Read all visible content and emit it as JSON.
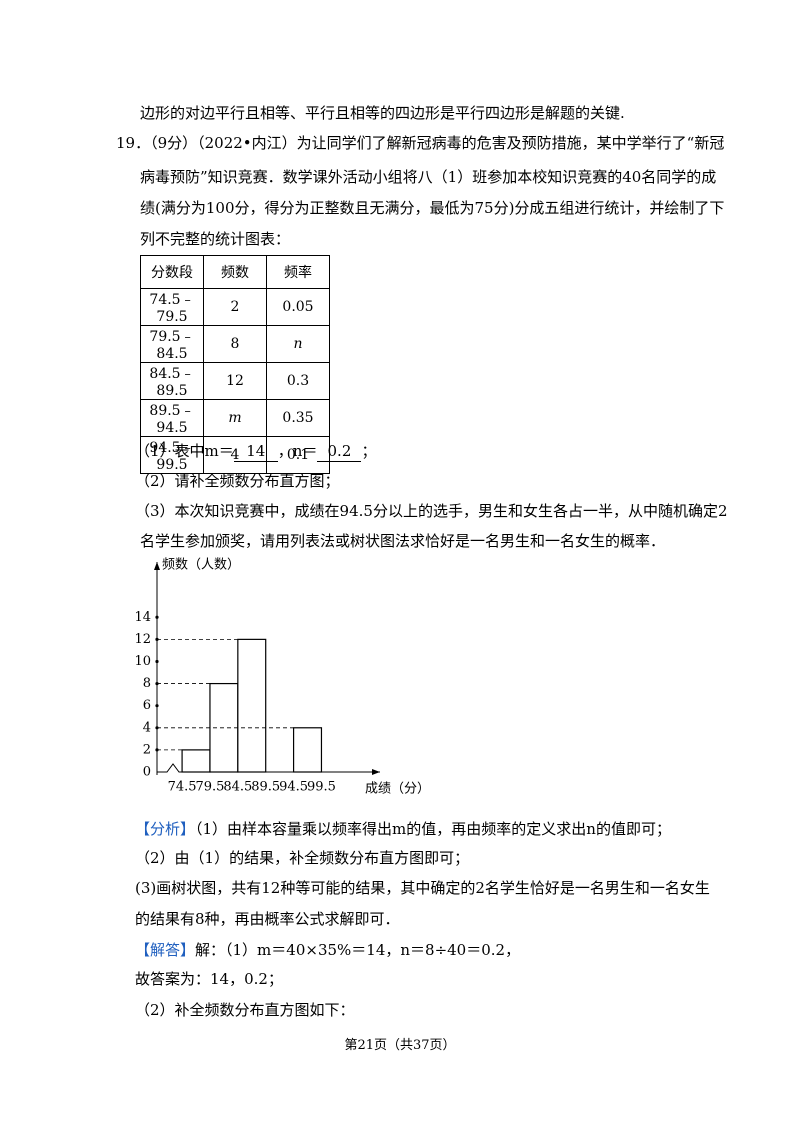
{
  "text": {
    "lines": [
      "边形的对边平行且相等、平行且相等的四边形是平行四边形是解题的关键.",
      "19．（9分）（2022•内江）为让同学们了解新冠病毒的危害及预防措施，某中学举行了“新冠",
      "病毒预防”知识竞赛．数学课外活动小组将八（1）班参加本校知识竞赛的40名同学的成",
      "绩(满分为100分，得分为正整数且无满分，最低为75分)分成五组进行统计，并绘制了下",
      "列不完整的统计图表："
    ]
  },
  "table": {
    "header": [
      "分数段",
      "频数",
      "频率"
    ],
    "rows": [
      [
        "74.5﹣79.5",
        "2",
        "0.05"
      ],
      [
        "79.5﹣84.5",
        "8",
        "n"
      ],
      [
        "84.5﹣89.5",
        "12",
        "0.3"
      ],
      [
        "89.5﹣94.5",
        "m",
        "0.35"
      ],
      [
        "94.5﹣99.5",
        "4",
        "0.1"
      ]
    ]
  },
  "questions": {
    "q1": {
      "prefix": "（1）表中m＝",
      "m": "14",
      "mid": "，n＝",
      "n": "0.2",
      "end": "；"
    },
    "q2": "（2）请补全频数分布直方图；",
    "q3": [
      "（3）本次知识竞赛中，成绩在94.5分以上的选手，男生和女生各占一半，从中随机确定2",
      "名学生参加颁奖，请用列表法或树状图法求恰好是一名男生和一名女生的概率．"
    ]
  },
  "chart_data": {
    "type": "histogram",
    "y_label": "频数（人数）",
    "x_label": "成绩（分）",
    "bins": [
      74.5,
      79.5,
      84.5,
      89.5,
      94.5,
      99.5
    ],
    "counts": [
      2,
      8,
      12,
      null,
      4
    ],
    "xlim": [
      70,
      110
    ],
    "ylim": [
      0,
      19
    ],
    "yticks": [
      0,
      2,
      4,
      6,
      8,
      10,
      12,
      14
    ],
    "color": "#ffffff"
  },
  "analysis": {
    "tag": "【分析】",
    "lines": [
      "（1）由样本容量乘以频率得出m的值，再由频率的定义求出n的值即可；",
      "（2）由（1）的结果，补全频数分布直方图即可；",
      "(3)画树状图，共有12种等可能的结果，其中确定的2名学生恰好是一名男生和一名女生",
      "的结果有8种，再由概率公式求解即可．"
    ]
  },
  "answer": {
    "tag": "【解答】",
    "lines": [
      "解：（1）m＝40×35%＝14，n＝8÷40＝0.2，",
      "故答案为：14，0.2；",
      "（2）补全频数分布直方图如下："
    ]
  },
  "footer": "第21页（共37页）"
}
